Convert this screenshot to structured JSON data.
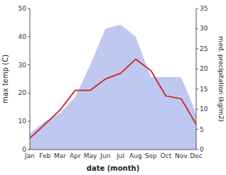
{
  "chart_data": {
    "type": "line",
    "categories": [
      "Jan",
      "Feb",
      "Mar",
      "Apr",
      "May",
      "Jun",
      "Jul",
      "Aug",
      "Sep",
      "Oct",
      "Nov",
      "Dec"
    ],
    "x_label": "date (month)",
    "y_label": "max temp (C)",
    "y2_label": "med. precipitation (kg/m2)",
    "series": [
      {
        "type": "area",
        "axis": "y2",
        "color": "#bfc8f0",
        "values": [
          4,
          7,
          9,
          13,
          21,
          30,
          31,
          28,
          18,
          18,
          18,
          9
        ]
      },
      {
        "type": "line",
        "color": "#cc3333",
        "values": [
          4,
          9,
          14,
          21,
          21,
          25,
          27,
          32,
          28,
          19,
          18,
          9
        ]
      }
    ],
    "ylim": [
      0,
      50
    ],
    "yticks": [
      0,
      10,
      20,
      30,
      40,
      50
    ],
    "y2lim": [
      0,
      35
    ],
    "y2ticks": [
      0,
      5,
      10,
      15,
      20,
      25,
      30,
      35
    ],
    "grid": false
  }
}
